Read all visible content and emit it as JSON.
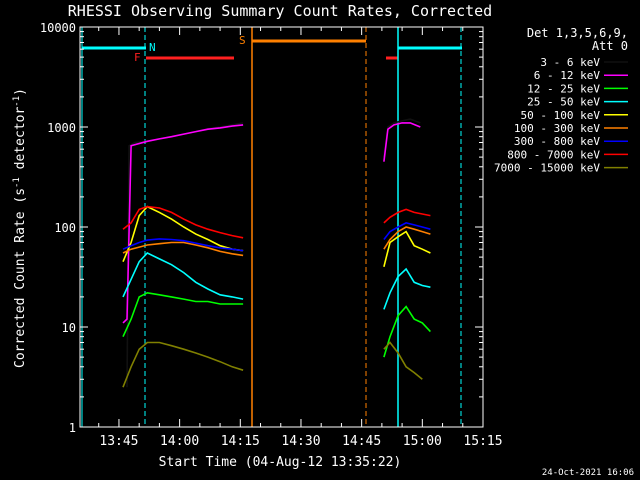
{
  "chart_data": {
    "type": "line",
    "title": "RHESSI Observing Summary Count Rates, Corrected",
    "xlabel": "Start Time (04-Aug-12 13:35:22)",
    "ylabel_main": "Corrected Count Rate (s",
    "ylabel_sup": "-1",
    "ylabel_end": " detector",
    "ylabel_sup2": "-1",
    "ylabel_close": ")",
    "x_ticks": [
      "13:45",
      "14:00",
      "14:15",
      "14:30",
      "14:45",
      "15:00",
      "15:15"
    ],
    "x_tick_minutes": [
      45,
      60,
      75,
      90,
      105,
      120,
      135
    ],
    "xlim_minutes": [
      35.37,
      135
    ],
    "y_ticks": [
      "1",
      "10",
      "100",
      "1000",
      "10000"
    ],
    "y_tick_values": [
      1,
      10,
      100,
      1000,
      10000
    ],
    "ylim": [
      1,
      10000
    ],
    "y_scale": "log",
    "legend_header": [
      "Det 1,3,5,6,9,",
      "Att 0"
    ],
    "footer_date": "24-Oct-2021 16:06",
    "flags": [
      {
        "label": "N",
        "color": "#00ffff"
      },
      {
        "label": "F",
        "color": "#ff2020"
      },
      {
        "label": "S",
        "color": "#ff8000"
      }
    ],
    "series": [
      {
        "name": "3 - 6 keV",
        "color": "#000000",
        "segments": [
          {
            "x": [
              47,
              47.5,
              49,
              52,
              55,
              58,
              61,
              64,
              67,
              70,
              73,
              75.7
            ],
            "y": [
              2.5,
              650,
              700,
              720,
              760,
              800,
              850,
              900,
              960,
              1000,
              1050,
              1100
            ]
          },
          {
            "x": [
              110.5,
              111.5,
              113,
              115,
              117,
              119.5
            ],
            "y": [
              500,
              1000,
              1100,
              1150,
              1200,
              1100
            ]
          }
        ]
      },
      {
        "name": "6 - 12 keV",
        "color": "#ff00ff",
        "segments": [
          {
            "x": [
              46,
              47,
              48,
              52,
              55,
              58,
              61,
              64,
              67,
              70,
              73,
              75.7
            ],
            "y": [
              11,
              12,
              650,
              720,
              760,
              800,
              850,
              900,
              950,
              980,
              1020,
              1050
            ]
          },
          {
            "x": [
              110.5,
              111.5,
              113,
              115,
              117,
              119.5
            ],
            "y": [
              450,
              950,
              1050,
              1100,
              1100,
              1000
            ]
          }
        ]
      },
      {
        "name": "12 - 25 keV",
        "color": "#00ff00",
        "segments": [
          {
            "x": [
              46,
              48,
              50,
              52,
              55,
              58,
              61,
              64,
              67,
              70,
              73,
              75.7
            ],
            "y": [
              8,
              12,
              20,
              22,
              21,
              20,
              19,
              18,
              18,
              17,
              17,
              17
            ]
          },
          {
            "x": [
              110.5,
              112,
              114,
              116,
              118,
              120,
              122
            ],
            "y": [
              5,
              8,
              13,
              16,
              12,
              11,
              9
            ]
          }
        ]
      },
      {
        "name": "25 - 50 keV",
        "color": "#00ffff",
        "segments": [
          {
            "x": [
              46,
              48,
              50,
              52,
              55,
              58,
              61,
              64,
              67,
              70,
              73,
              75.7
            ],
            "y": [
              20,
              30,
              45,
              55,
              48,
              42,
              35,
              28,
              24,
              21,
              20,
              19
            ]
          },
          {
            "x": [
              110.5,
              112,
              114,
              116,
              118,
              120,
              122
            ],
            "y": [
              15,
              22,
              32,
              38,
              28,
              26,
              25
            ]
          }
        ]
      },
      {
        "name": "50 - 100 keV",
        "color": "#ffff00",
        "segments": [
          {
            "x": [
              46,
              48,
              50,
              52,
              55,
              58,
              61,
              64,
              67,
              70,
              73,
              75.7
            ],
            "y": [
              45,
              70,
              130,
              160,
              140,
              120,
              100,
              85,
              75,
              65,
              60,
              58
            ]
          },
          {
            "x": [
              110.5,
              112,
              114,
              116,
              118,
              120,
              122
            ],
            "y": [
              40,
              70,
              80,
              90,
              65,
              60,
              55
            ]
          }
        ]
      },
      {
        "name": "100 - 300 keV",
        "color": "#ff8000",
        "segments": [
          {
            "x": [
              46,
              48,
              50,
              52,
              55,
              58,
              61,
              64,
              67,
              70,
              73,
              75.7
            ],
            "y": [
              55,
              60,
              63,
              66,
              68,
              70,
              70,
              66,
              62,
              57,
              54,
              52
            ]
          },
          {
            "x": [
              110.5,
              112,
              114,
              116,
              118,
              120,
              122
            ],
            "y": [
              60,
              75,
              90,
              100,
              95,
              90,
              85
            ]
          }
        ]
      },
      {
        "name": "300 - 800 keV",
        "color": "#0000ff",
        "segments": [
          {
            "x": [
              46,
              48,
              50,
              52,
              55,
              58,
              61,
              64,
              67,
              70,
              73,
              75.7
            ],
            "y": [
              60,
              65,
              70,
              74,
              76,
              75,
              73,
              69,
              65,
              62,
              60,
              58
            ]
          },
          {
            "x": [
              110.5,
              112,
              114,
              116,
              118,
              120,
              122
            ],
            "y": [
              75,
              90,
              100,
              110,
              105,
              100,
              95
            ]
          }
        ]
      },
      {
        "name": "800 - 7000 keV",
        "color": "#ff0000",
        "segments": [
          {
            "x": [
              46,
              48,
              50,
              52,
              55,
              58,
              61,
              64,
              67,
              70,
              73,
              75.7
            ],
            "y": [
              95,
              110,
              150,
              160,
              155,
              140,
              120,
              105,
              95,
              88,
              82,
              78
            ]
          },
          {
            "x": [
              110.5,
              112,
              114,
              116,
              118,
              120,
              122
            ],
            "y": [
              110,
              125,
              140,
              150,
              140,
              135,
              130
            ]
          }
        ]
      },
      {
        "name": "7000 - 15000 keV",
        "color": "#808000",
        "segments": [
          {
            "x": [
              46,
              48,
              50,
              52,
              55,
              58,
              61,
              64,
              67,
              70,
              73,
              75.7
            ],
            "y": [
              2.5,
              4,
              6,
              7,
              7,
              6.5,
              6,
              5.5,
              5,
              4.5,
              4,
              3.7
            ]
          },
          {
            "x": [
              110.5,
              112,
              114,
              116,
              118,
              120
            ],
            "y": [
              6,
              7,
              5.5,
              4,
              3.5,
              3
            ]
          }
        ]
      }
    ]
  }
}
